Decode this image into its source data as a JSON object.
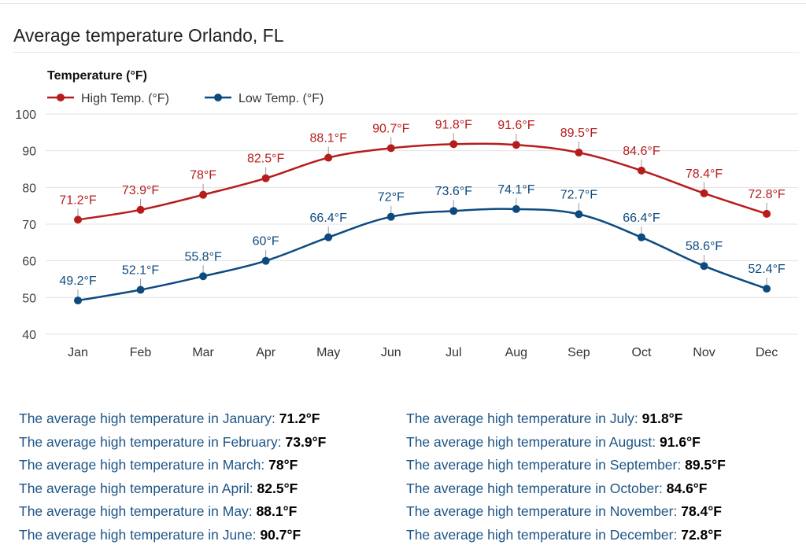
{
  "page": {
    "title": "Average temperature Orlando, FL"
  },
  "chart_data": {
    "type": "line",
    "title": "Average temperature Orlando, FL",
    "ylabel": "Temperature (°F)",
    "xlabel": "",
    "ylim": [
      40,
      100
    ],
    "yticks": [
      100,
      90,
      80,
      70,
      60,
      50,
      40
    ],
    "categories": [
      "Jan",
      "Feb",
      "Mar",
      "Apr",
      "May",
      "Jun",
      "Jul",
      "Aug",
      "Sep",
      "Oct",
      "Nov",
      "Dec"
    ],
    "legend_position": "top-left",
    "series": [
      {
        "name": "High Temp. (°F)",
        "color": "#b71c1c",
        "values": [
          71.2,
          73.9,
          78,
          82.5,
          88.1,
          90.7,
          91.8,
          91.6,
          89.5,
          84.6,
          78.4,
          72.8
        ],
        "labels": [
          "71.2°F",
          "73.9°F",
          "78°F",
          "82.5°F",
          "88.1°F",
          "90.7°F",
          "91.8°F",
          "91.6°F",
          "89.5°F",
          "84.6°F",
          "78.4°F",
          "72.8°F"
        ]
      },
      {
        "name": "Low Temp. (°F)",
        "color": "#0d4a80",
        "values": [
          49.2,
          52.1,
          55.8,
          60,
          66.4,
          72,
          73.6,
          74.1,
          72.7,
          66.4,
          58.6,
          52.4
        ],
        "labels": [
          "49.2°F",
          "52.1°F",
          "55.8°F",
          "60°F",
          "66.4°F",
          "72°F",
          "73.6°F",
          "74.1°F",
          "72.7°F",
          "66.4°F",
          "58.6°F",
          "52.4°F"
        ]
      }
    ]
  },
  "summary": {
    "left": [
      {
        "text": "The average high temperature in January: ",
        "value": "71.2°F"
      },
      {
        "text": "The average high temperature in February: ",
        "value": "73.9°F"
      },
      {
        "text": "The average high temperature in March: ",
        "value": "78°F"
      },
      {
        "text": "The average high temperature in April: ",
        "value": "82.5°F"
      },
      {
        "text": "The average high temperature in May: ",
        "value": "88.1°F"
      },
      {
        "text": "The average high temperature in June: ",
        "value": "90.7°F"
      }
    ],
    "right": [
      {
        "text": "The average high temperature in July: ",
        "value": "91.8°F"
      },
      {
        "text": "The average high temperature in August: ",
        "value": "91.6°F"
      },
      {
        "text": "The average high temperature in September: ",
        "value": "89.5°F"
      },
      {
        "text": "The average high temperature in October: ",
        "value": "84.6°F"
      },
      {
        "text": "The average high temperature in November: ",
        "value": "78.4°F"
      },
      {
        "text": "The average high temperature in December: ",
        "value": "72.8°F"
      }
    ]
  }
}
